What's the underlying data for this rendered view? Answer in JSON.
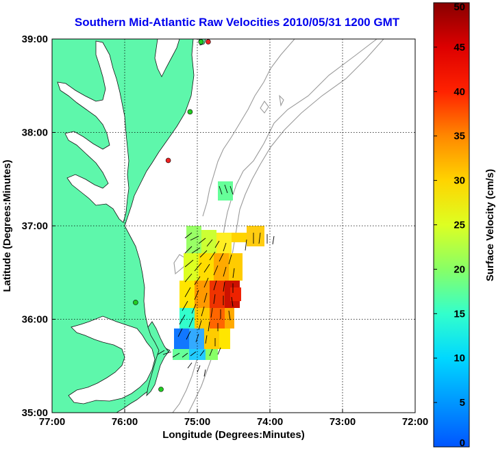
{
  "title": "Southern Mid-Atlantic Raw Velocities 2010/05/31 1200 GMT",
  "xlabel": "Longitude (Degrees:Minutes)",
  "ylabel": "Latitude (Degrees:Minutes)",
  "colorbar": {
    "label": "Surface Velocity (cm/s)",
    "min": 0,
    "max": 50,
    "ticks": [
      "0",
      "5",
      "10",
      "15",
      "20",
      "25",
      "30",
      "35",
      "40",
      "45",
      "50"
    ]
  },
  "x_ticks": [
    "77:00",
    "76:00",
    "75:00",
    "74:00",
    "73:00",
    "72:00"
  ],
  "y_ticks": [
    "39:00",
    "38:00",
    "37:00",
    "36:00",
    "35:00"
  ],
  "colors": {
    "land": "#5ef7ab",
    "title": "#0000ee",
    "bathymetry": "#999999",
    "station_green": "#22cc22",
    "station_red": "#ee2222"
  },
  "map_extent": {
    "lon": [
      -77,
      -72
    ],
    "lat": [
      35,
      39
    ]
  },
  "grid": true,
  "stations": [
    {
      "lon": -74.85,
      "lat": 38.97,
      "color": "red"
    },
    {
      "lon": -74.95,
      "lat": 38.97,
      "color": "green"
    },
    {
      "lon": -75.85,
      "lat": 36.18,
      "color": "green"
    },
    {
      "lon": -75.5,
      "lat": 35.25,
      "color": "green"
    },
    {
      "lon": -75.4,
      "lat": 37.7,
      "color": "red"
    },
    {
      "lon": -75.1,
      "lat": 38.22,
      "color": "green"
    }
  ]
}
